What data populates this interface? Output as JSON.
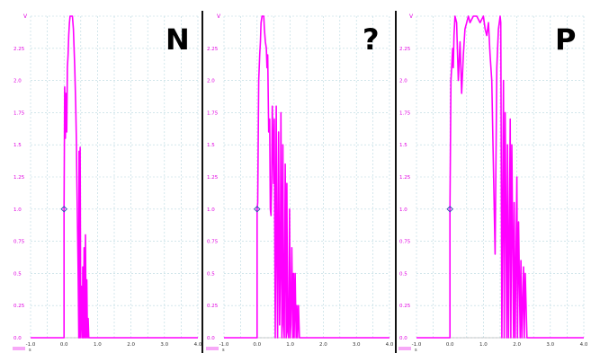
{
  "colors": {
    "trace": "#ff00ff",
    "grid": "#b8d8e0",
    "axis_text": "#e000e0",
    "marker": "#3050b0"
  },
  "chart_data": [
    {
      "type": "line",
      "panel_label": "N",
      "y_unit": "V",
      "x_unit": "s",
      "xlim": [
        -1.0,
        4.0
      ],
      "ylim": [
        0.0,
        2.5
      ],
      "x_ticks": [
        "-1.0",
        "0.0",
        "1.0",
        "2.0",
        "3.0",
        "4.0"
      ],
      "y_ticks": [
        "0.0",
        "0.25",
        "0.5",
        "0.75",
        "1.0",
        "1.25",
        "1.5",
        "1.75",
        "2.0",
        "2.25"
      ],
      "marker": {
        "x": 0.0,
        "y": 1.0
      },
      "series": [
        {
          "x": [
            -1.0,
            0.0,
            0.0,
            0.02,
            0.04,
            0.06,
            0.08,
            0.1,
            0.12,
            0.14,
            0.16,
            0.18,
            0.2,
            0.22,
            0.25,
            0.28,
            0.32,
            0.35,
            0.37,
            0.38,
            0.4,
            0.42,
            0.44,
            0.45,
            0.46,
            0.48,
            0.5,
            0.52,
            0.55,
            0.56,
            0.58,
            0.6,
            0.62,
            0.64,
            0.66,
            0.68,
            0.7,
            0.72,
            0.74,
            0.76,
            0.8,
            1.5,
            4.0
          ],
          "y": [
            0.0,
            0.0,
            1.0,
            1.95,
            1.55,
            1.9,
            1.6,
            2.1,
            2.2,
            2.35,
            2.45,
            2.5,
            2.5,
            2.5,
            2.5,
            2.4,
            2.1,
            1.8,
            1.5,
            1.3,
            0.9,
            0.55,
            0.0,
            1.45,
            0.0,
            1.48,
            0.0,
            0.4,
            0.0,
            0.55,
            0.0,
            0.7,
            0.0,
            0.8,
            0.0,
            0.45,
            0.0,
            0.15,
            0.0,
            0.0,
            0.0,
            0.0,
            0.0
          ]
        }
      ]
    },
    {
      "type": "line",
      "panel_label": "?",
      "y_unit": "V",
      "x_unit": "s",
      "xlim": [
        -1.0,
        4.0
      ],
      "ylim": [
        0.0,
        2.5
      ],
      "x_ticks": [
        "-1.0",
        "0.0",
        "1.0",
        "2.0",
        "3.0",
        "4.0"
      ],
      "y_ticks": [
        "0.0",
        "0.25",
        "0.5",
        "0.75",
        "1.0",
        "1.25",
        "1.5",
        "1.75",
        "2.0",
        "2.25"
      ],
      "marker": {
        "x": 0.0,
        "y": 1.0
      },
      "series": [
        {
          "x": [
            -1.0,
            0.0,
            0.0,
            0.02,
            0.05,
            0.08,
            0.1,
            0.12,
            0.15,
            0.18,
            0.2,
            0.22,
            0.25,
            0.28,
            0.3,
            0.32,
            0.35,
            0.38,
            0.4,
            0.42,
            0.44,
            0.46,
            0.5,
            0.52,
            0.55,
            0.58,
            0.6,
            0.62,
            0.65,
            0.68,
            0.7,
            0.72,
            0.75,
            0.78,
            0.8,
            0.82,
            0.85,
            0.88,
            0.9,
            0.92,
            0.95,
            0.98,
            1.0,
            1.02,
            1.05,
            1.08,
            1.1,
            1.12,
            1.15,
            1.18,
            1.2,
            1.22,
            1.25,
            1.28,
            1.3,
            1.5,
            4.0
          ],
          "y": [
            0.0,
            0.0,
            1.0,
            1.05,
            2.0,
            2.2,
            2.3,
            2.45,
            2.5,
            2.5,
            2.5,
            2.4,
            2.3,
            2.25,
            2.1,
            2.2,
            1.6,
            1.7,
            1.0,
            0.95,
            1.2,
            1.8,
            1.2,
            1.7,
            0.0,
            1.8,
            0.6,
            0.0,
            1.6,
            0.1,
            0.5,
            1.75,
            0.0,
            1.5,
            0.1,
            0.0,
            1.35,
            0.0,
            1.2,
            0.05,
            0.0,
            1.0,
            0.0,
            0.1,
            0.7,
            0.0,
            0.5,
            0.0,
            0.5,
            0.0,
            0.25,
            0.0,
            0.25,
            0.0,
            0.0,
            0.0,
            0.0
          ]
        }
      ]
    },
    {
      "type": "line",
      "panel_label": "P",
      "y_unit": "V",
      "x_unit": "s",
      "xlim": [
        -1.0,
        4.0
      ],
      "ylim": [
        0.0,
        2.5
      ],
      "x_ticks": [
        "-1.0",
        "0.0",
        "1.0",
        "2.0",
        "3.0",
        "4.0"
      ],
      "y_ticks": [
        "0.0",
        "0.25",
        "0.5",
        "0.75",
        "1.0",
        "1.25",
        "1.5",
        "1.75",
        "2.0",
        "2.25"
      ],
      "marker": {
        "x": 0.0,
        "y": 1.0
      },
      "series": [
        {
          "x": [
            -1.0,
            0.0,
            0.0,
            0.03,
            0.05,
            0.08,
            0.1,
            0.12,
            0.15,
            0.2,
            0.25,
            0.3,
            0.35,
            0.4,
            0.45,
            0.5,
            0.55,
            0.6,
            0.7,
            0.8,
            0.9,
            1.0,
            1.05,
            1.1,
            1.15,
            1.2,
            1.25,
            1.3,
            1.35,
            1.4,
            1.45,
            1.5,
            1.52,
            1.55,
            1.6,
            1.62,
            1.65,
            1.7,
            1.72,
            1.75,
            1.8,
            1.82,
            1.85,
            1.9,
            1.92,
            1.95,
            2.0,
            2.02,
            2.05,
            2.1,
            2.12,
            2.15,
            2.2,
            2.22,
            2.25,
            2.3,
            2.32,
            2.35,
            2.5,
            4.0
          ],
          "y": [
            0.0,
            0.0,
            1.0,
            2.0,
            2.1,
            2.25,
            2.1,
            2.35,
            2.5,
            2.45,
            2.0,
            2.3,
            1.9,
            2.2,
            2.4,
            2.45,
            2.5,
            2.45,
            2.5,
            2.5,
            2.45,
            2.5,
            2.4,
            2.35,
            2.45,
            2.2,
            2.0,
            1.3,
            0.65,
            2.1,
            2.4,
            2.5,
            2.45,
            0.0,
            2.0,
            0.0,
            1.75,
            0.0,
            1.5,
            0.0,
            1.7,
            0.0,
            1.5,
            0.0,
            1.05,
            0.0,
            1.25,
            0.0,
            0.9,
            0.0,
            0.6,
            0.0,
            0.55,
            0.0,
            0.5,
            0.0,
            0.0,
            0.0,
            0.0,
            0.0
          ]
        }
      ]
    }
  ]
}
